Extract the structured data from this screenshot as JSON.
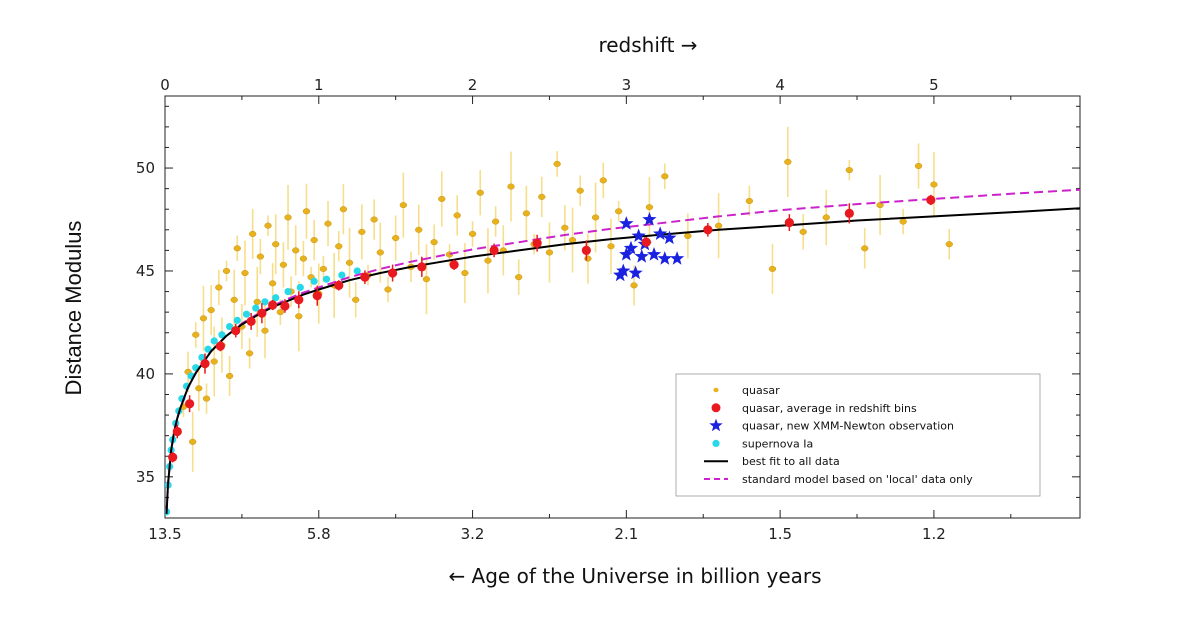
{
  "chart_data": {
    "type": "scatter",
    "top_axis": {
      "label": "redshift →",
      "ticks": [
        {
          "value": 0,
          "label": "0"
        },
        {
          "value": 1,
          "label": "1"
        },
        {
          "value": 2,
          "label": "2"
        },
        {
          "value": 3,
          "label": "3"
        },
        {
          "value": 4,
          "label": "4"
        },
        {
          "value": 5,
          "label": "5"
        }
      ],
      "xlim": [
        0,
        5.95
      ]
    },
    "bottom_axis": {
      "label": "← Age of the Universe in billion years",
      "ticks": [
        {
          "z": 0,
          "label": "13.5"
        },
        {
          "z": 1,
          "label": "5.8"
        },
        {
          "z": 2,
          "label": "3.2"
        },
        {
          "z": 3,
          "label": "2.1"
        },
        {
          "z": 4,
          "label": "1.5"
        },
        {
          "z": 5,
          "label": "1.2"
        }
      ]
    },
    "ylabel": "Distance Modulus",
    "ylim": [
      33,
      53.5
    ],
    "yticks": [
      35,
      40,
      45,
      50
    ],
    "grid": false,
    "legend_position": "bottom-right",
    "series": [
      {
        "name": "quasar",
        "kind": "scatter-errorbar",
        "color": "#e8b21c",
        "error_color": "#f5d76e",
        "points": [
          {
            "x": 0.12,
            "y": 38.4
          },
          {
            "x": 0.15,
            "y": 40.1
          },
          {
            "x": 0.18,
            "y": 36.7
          },
          {
            "x": 0.2,
            "y": 41.9
          },
          {
            "x": 0.22,
            "y": 39.3
          },
          {
            "x": 0.25,
            "y": 42.7
          },
          {
            "x": 0.27,
            "y": 38.8
          },
          {
            "x": 0.3,
            "y": 43.1
          },
          {
            "x": 0.32,
            "y": 40.6
          },
          {
            "x": 0.35,
            "y": 44.2
          },
          {
            "x": 0.37,
            "y": 41.4
          },
          {
            "x": 0.4,
            "y": 45.0
          },
          {
            "x": 0.42,
            "y": 39.9
          },
          {
            "x": 0.45,
            "y": 43.6
          },
          {
            "x": 0.47,
            "y": 46.1
          },
          {
            "x": 0.5,
            "y": 42.3
          },
          {
            "x": 0.52,
            "y": 44.9
          },
          {
            "x": 0.55,
            "y": 41.0
          },
          {
            "x": 0.57,
            "y": 46.8
          },
          {
            "x": 0.6,
            "y": 43.5
          },
          {
            "x": 0.62,
            "y": 45.7
          },
          {
            "x": 0.65,
            "y": 42.1
          },
          {
            "x": 0.67,
            "y": 47.2
          },
          {
            "x": 0.7,
            "y": 44.4
          },
          {
            "x": 0.72,
            "y": 46.3
          },
          {
            "x": 0.75,
            "y": 43.0
          },
          {
            "x": 0.77,
            "y": 45.3
          },
          {
            "x": 0.8,
            "y": 47.6
          },
          {
            "x": 0.82,
            "y": 44.0
          },
          {
            "x": 0.85,
            "y": 46.0
          },
          {
            "x": 0.87,
            "y": 42.8
          },
          {
            "x": 0.9,
            "y": 45.6
          },
          {
            "x": 0.92,
            "y": 47.9
          },
          {
            "x": 0.95,
            "y": 44.7
          },
          {
            "x": 0.97,
            "y": 46.5
          },
          {
            "x": 1.0,
            "y": 43.9
          },
          {
            "x": 1.03,
            "y": 45.1
          },
          {
            "x": 1.06,
            "y": 47.3
          },
          {
            "x": 1.1,
            "y": 44.3
          },
          {
            "x": 1.13,
            "y": 46.2
          },
          {
            "x": 1.16,
            "y": 48.0
          },
          {
            "x": 1.2,
            "y": 45.4
          },
          {
            "x": 1.24,
            "y": 43.6
          },
          {
            "x": 1.28,
            "y": 46.9
          },
          {
            "x": 1.32,
            "y": 44.8
          },
          {
            "x": 1.36,
            "y": 47.5
          },
          {
            "x": 1.4,
            "y": 45.9
          },
          {
            "x": 1.45,
            "y": 44.1
          },
          {
            "x": 1.5,
            "y": 46.6
          },
          {
            "x": 1.55,
            "y": 48.2
          },
          {
            "x": 1.6,
            "y": 45.2
          },
          {
            "x": 1.65,
            "y": 47.0
          },
          {
            "x": 1.7,
            "y": 44.6
          },
          {
            "x": 1.75,
            "y": 46.4
          },
          {
            "x": 1.8,
            "y": 48.5
          },
          {
            "x": 1.85,
            "y": 45.8
          },
          {
            "x": 1.9,
            "y": 47.7
          },
          {
            "x": 1.95,
            "y": 44.9
          },
          {
            "x": 2.0,
            "y": 46.8
          },
          {
            "x": 2.05,
            "y": 48.8
          },
          {
            "x": 2.1,
            "y": 45.5
          },
          {
            "x": 2.15,
            "y": 47.4
          },
          {
            "x": 2.2,
            "y": 46.0
          },
          {
            "x": 2.25,
            "y": 49.1
          },
          {
            "x": 2.3,
            "y": 44.7
          },
          {
            "x": 2.35,
            "y": 47.8
          },
          {
            "x": 2.4,
            "y": 46.3
          },
          {
            "x": 2.45,
            "y": 48.6
          },
          {
            "x": 2.5,
            "y": 45.9
          },
          {
            "x": 2.55,
            "y": 50.2
          },
          {
            "x": 2.6,
            "y": 47.1
          },
          {
            "x": 2.65,
            "y": 46.5
          },
          {
            "x": 2.7,
            "y": 48.9
          },
          {
            "x": 2.75,
            "y": 45.6
          },
          {
            "x": 2.8,
            "y": 47.6
          },
          {
            "x": 2.85,
            "y": 49.4
          },
          {
            "x": 2.9,
            "y": 46.2
          },
          {
            "x": 2.95,
            "y": 47.9
          },
          {
            "x": 3.05,
            "y": 44.3
          },
          {
            "x": 3.15,
            "y": 48.1
          },
          {
            "x": 3.25,
            "y": 49.6
          },
          {
            "x": 3.4,
            "y": 46.7
          },
          {
            "x": 3.6,
            "y": 47.2
          },
          {
            "x": 3.8,
            "y": 48.4
          },
          {
            "x": 3.95,
            "y": 45.1
          },
          {
            "x": 4.05,
            "y": 50.3
          },
          {
            "x": 4.15,
            "y": 46.9
          },
          {
            "x": 4.3,
            "y": 47.6
          },
          {
            "x": 4.45,
            "y": 49.9
          },
          {
            "x": 4.55,
            "y": 46.1
          },
          {
            "x": 4.65,
            "y": 48.2
          },
          {
            "x": 4.8,
            "y": 47.4
          },
          {
            "x": 4.9,
            "y": 50.1
          },
          {
            "x": 5.0,
            "y": 49.2
          },
          {
            "x": 5.1,
            "y": 46.3
          }
        ]
      },
      {
        "name": "quasar, average in redshift bins",
        "kind": "scatter-errorbar",
        "color": "#e8191f",
        "points": [
          {
            "x": 0.05,
            "y": 35.95
          },
          {
            "x": 0.08,
            "y": 37.2
          },
          {
            "x": 0.16,
            "y": 38.55
          },
          {
            "x": 0.26,
            "y": 40.5
          },
          {
            "x": 0.36,
            "y": 41.35
          },
          {
            "x": 0.46,
            "y": 42.1
          },
          {
            "x": 0.56,
            "y": 42.55
          },
          {
            "x": 0.63,
            "y": 42.95
          },
          {
            "x": 0.7,
            "y": 43.35
          },
          {
            "x": 0.78,
            "y": 43.3
          },
          {
            "x": 0.87,
            "y": 43.6
          },
          {
            "x": 0.99,
            "y": 43.8
          },
          {
            "x": 1.13,
            "y": 44.3
          },
          {
            "x": 1.3,
            "y": 44.7
          },
          {
            "x": 1.48,
            "y": 44.9
          },
          {
            "x": 1.67,
            "y": 45.2
          },
          {
            "x": 1.88,
            "y": 45.3
          },
          {
            "x": 2.14,
            "y": 46.0
          },
          {
            "x": 2.42,
            "y": 46.35
          },
          {
            "x": 2.74,
            "y": 46.0
          },
          {
            "x": 3.13,
            "y": 46.4
          },
          {
            "x": 3.53,
            "y": 47.0
          },
          {
            "x": 4.06,
            "y": 47.35
          },
          {
            "x": 4.45,
            "y": 47.8
          },
          {
            "x": 4.98,
            "y": 48.45
          }
        ]
      },
      {
        "name": "quasar, new XMM-Newton observation",
        "kind": "scatter",
        "color": "#1a22e0",
        "points": [
          {
            "x": 3.0,
            "y": 47.3
          },
          {
            "x": 3.15,
            "y": 47.5
          },
          {
            "x": 3.08,
            "y": 46.7
          },
          {
            "x": 3.22,
            "y": 46.8
          },
          {
            "x": 3.28,
            "y": 46.6
          },
          {
            "x": 3.03,
            "y": 46.1
          },
          {
            "x": 3.12,
            "y": 46.3
          },
          {
            "x": 3.0,
            "y": 45.8
          },
          {
            "x": 3.1,
            "y": 45.7
          },
          {
            "x": 3.18,
            "y": 45.8
          },
          {
            "x": 3.25,
            "y": 45.6
          },
          {
            "x": 3.33,
            "y": 45.6
          },
          {
            "x": 2.96,
            "y": 44.8
          },
          {
            "x": 2.98,
            "y": 45.0
          },
          {
            "x": 3.06,
            "y": 44.9
          }
        ]
      },
      {
        "name": "supernova Ia",
        "kind": "scatter",
        "color": "#27d9e8",
        "points": [
          {
            "x": 0.01,
            "y": 33.3
          },
          {
            "x": 0.02,
            "y": 34.6
          },
          {
            "x": 0.03,
            "y": 35.5
          },
          {
            "x": 0.04,
            "y": 36.3
          },
          {
            "x": 0.05,
            "y": 36.8
          },
          {
            "x": 0.07,
            "y": 37.6
          },
          {
            "x": 0.09,
            "y": 38.2
          },
          {
            "x": 0.11,
            "y": 38.8
          },
          {
            "x": 0.14,
            "y": 39.4
          },
          {
            "x": 0.17,
            "y": 39.9
          },
          {
            "x": 0.2,
            "y": 40.3
          },
          {
            "x": 0.24,
            "y": 40.8
          },
          {
            "x": 0.28,
            "y": 41.2
          },
          {
            "x": 0.32,
            "y": 41.6
          },
          {
            "x": 0.37,
            "y": 41.9
          },
          {
            "x": 0.42,
            "y": 42.3
          },
          {
            "x": 0.47,
            "y": 42.6
          },
          {
            "x": 0.53,
            "y": 42.9
          },
          {
            "x": 0.59,
            "y": 43.2
          },
          {
            "x": 0.65,
            "y": 43.5
          },
          {
            "x": 0.72,
            "y": 43.7
          },
          {
            "x": 0.8,
            "y": 44.0
          },
          {
            "x": 0.88,
            "y": 44.2
          },
          {
            "x": 0.97,
            "y": 44.5
          },
          {
            "x": 1.05,
            "y": 44.6
          },
          {
            "x": 1.15,
            "y": 44.8
          },
          {
            "x": 1.25,
            "y": 45.0
          }
        ]
      },
      {
        "name": "best fit to all data",
        "kind": "line",
        "color": "#000000",
        "x": [
          0.01,
          0.02,
          0.04,
          0.06,
          0.08,
          0.1,
          0.15,
          0.2,
          0.3,
          0.4,
          0.5,
          0.6,
          0.7,
          0.8,
          0.9,
          1.0,
          1.2,
          1.4,
          1.6,
          1.8,
          2.0,
          2.3,
          2.6,
          2.9,
          3.2,
          3.6,
          4.0,
          4.5,
          5.0,
          5.5,
          5.95
        ],
        "y": [
          33.2,
          34.7,
          36.3,
          37.2,
          37.85,
          38.35,
          39.35,
          40.05,
          41.1,
          41.85,
          42.4,
          42.85,
          43.25,
          43.55,
          43.85,
          44.1,
          44.55,
          44.9,
          45.2,
          45.45,
          45.7,
          46.0,
          46.3,
          46.55,
          46.75,
          47.0,
          47.2,
          47.45,
          47.65,
          47.85,
          48.05
        ]
      },
      {
        "name": "standard model based on 'local' data only",
        "kind": "dashed-line",
        "color": "#cc22cc",
        "x": [
          0.01,
          0.02,
          0.04,
          0.06,
          0.08,
          0.1,
          0.15,
          0.2,
          0.3,
          0.4,
          0.5,
          0.6,
          0.7,
          0.8,
          0.9,
          1.0,
          1.2,
          1.4,
          1.6,
          1.8,
          2.0,
          2.3,
          2.6,
          2.9,
          3.2,
          3.6,
          4.0,
          4.5,
          5.0,
          5.5,
          5.95
        ],
        "y": [
          33.2,
          34.7,
          36.3,
          37.2,
          37.85,
          38.35,
          39.35,
          40.05,
          41.1,
          41.85,
          42.45,
          42.9,
          43.3,
          43.65,
          43.95,
          44.2,
          44.7,
          45.1,
          45.45,
          45.75,
          46.05,
          46.4,
          46.75,
          47.05,
          47.3,
          47.65,
          47.95,
          48.25,
          48.5,
          48.75,
          48.95
        ]
      }
    ]
  }
}
